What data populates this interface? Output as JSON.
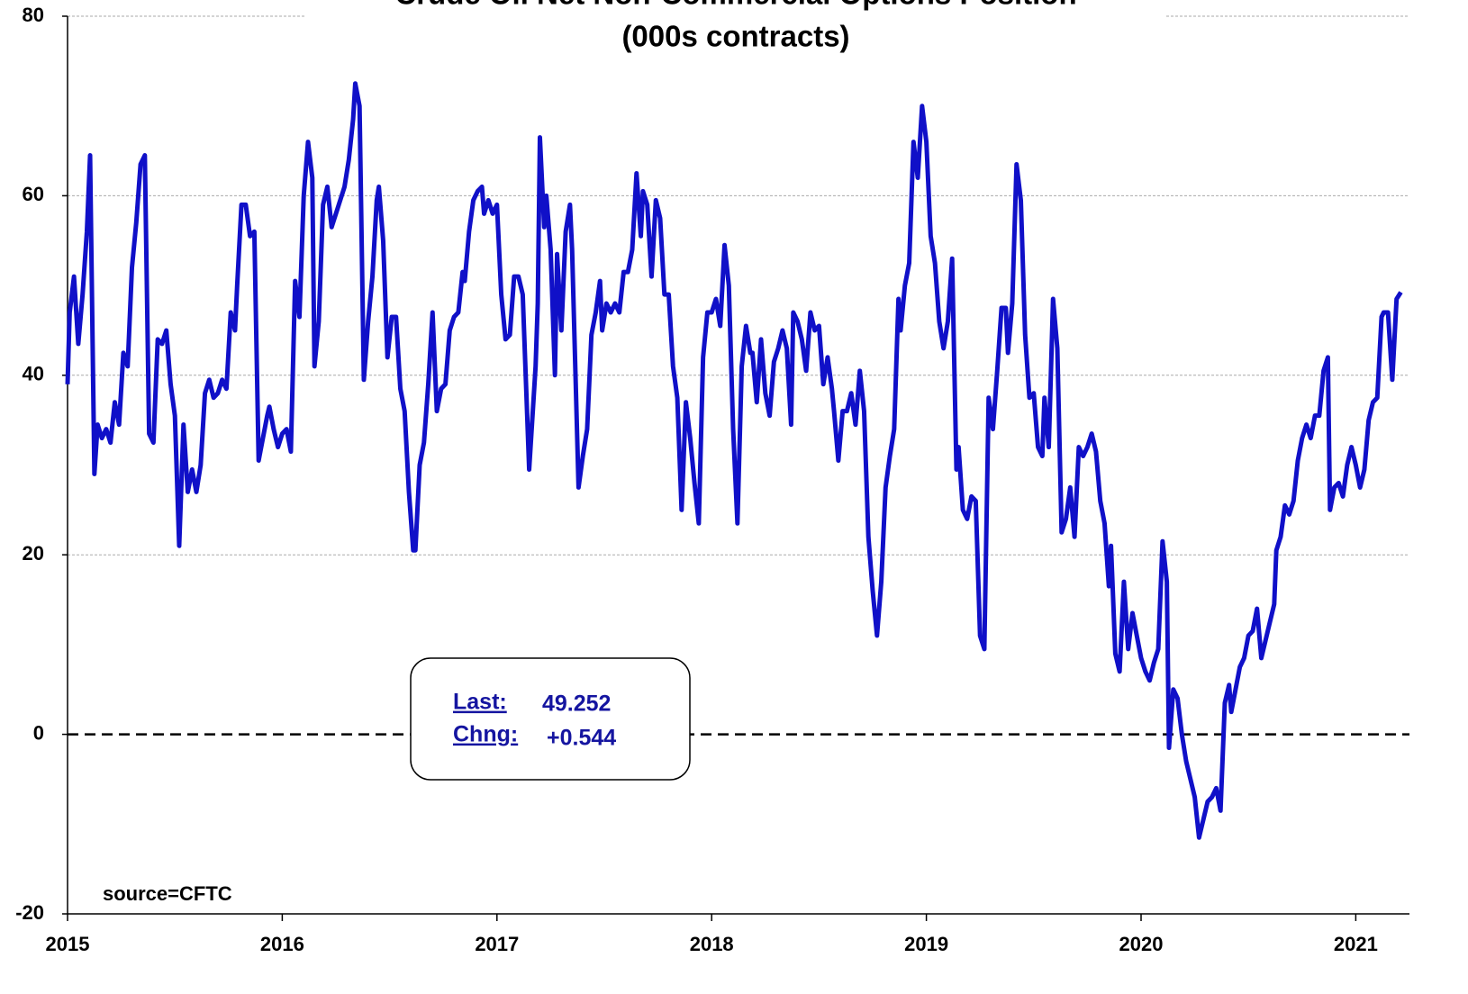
{
  "chart_data": {
    "type": "line",
    "title": "Crude Oil Net Non-Commercial Options Position",
    "subtitle": "(000s contracts)",
    "color": "#1010c8",
    "grid": true,
    "xlim": [
      2015,
      2021.25
    ],
    "xticks": [
      2015,
      2016,
      2017,
      2018,
      2019,
      2020,
      2021
    ],
    "ylim": [
      -20,
      80
    ],
    "yticks": [
      -20,
      0,
      20,
      40,
      60,
      80
    ],
    "annotations": {
      "last_label": "Last:",
      "last_value": "49.252",
      "change_label": "Chng:",
      "change_value": "+0.544",
      "source": "source=CFTC"
    },
    "x": [
      2015.0,
      2015.01,
      2015.03,
      2015.05,
      2015.07,
      2015.09,
      2015.105,
      2015.125,
      2015.14,
      2015.16,
      2015.18,
      2015.2,
      2015.22,
      2015.24,
      2015.26,
      2015.28,
      2015.3,
      2015.32,
      2015.34,
      2015.36,
      2015.38,
      2015.4,
      2015.42,
      2015.44,
      2015.46,
      2015.48,
      2015.5,
      2015.52,
      2015.54,
      2015.56,
      2015.58,
      2015.6,
      2015.62,
      2015.64,
      2015.66,
      2015.68,
      2015.7,
      2015.72,
      2015.74,
      2015.76,
      2015.78,
      2015.79,
      2015.81,
      2015.83,
      2015.85,
      2015.87,
      2015.89,
      2015.91,
      2015.93,
      2015.94,
      2015.96,
      2015.98,
      2016.0,
      2016.02,
      2016.04,
      2016.06,
      2016.08,
      2016.1,
      2016.12,
      2016.14,
      2016.15,
      2016.17,
      2016.19,
      2016.21,
      2016.23,
      2016.25,
      2016.27,
      2016.29,
      2016.31,
      2016.33,
      2016.34,
      2016.36,
      2016.38,
      2016.4,
      2016.42,
      2016.44,
      2016.45,
      2016.47,
      2016.49,
      2016.51,
      2016.53,
      2016.55,
      2016.57,
      2016.59,
      2016.61,
      2016.62,
      2016.64,
      2016.66,
      2016.68,
      2016.7,
      2016.72,
      2016.74,
      2016.76,
      2016.78,
      2016.8,
      2016.82,
      2016.84,
      2016.85,
      2016.87,
      2016.89,
      2016.91,
      2016.93,
      2016.94,
      2016.96,
      2016.98,
      2017.0,
      2017.02,
      2017.04,
      2017.06,
      2017.08,
      2017.1,
      2017.12,
      2017.15,
      2017.18,
      2017.19,
      2017.2,
      2017.22,
      2017.23,
      2017.25,
      2017.27,
      2017.28,
      2017.3,
      2017.32,
      2017.34,
      2017.35,
      2017.38,
      2017.4,
      2017.42,
      2017.44,
      2017.46,
      2017.48,
      2017.49,
      2017.51,
      2017.53,
      2017.55,
      2017.57,
      2017.59,
      2017.61,
      2017.63,
      2017.65,
      2017.67,
      2017.68,
      2017.7,
      2017.72,
      2017.74,
      2017.76,
      2017.78,
      2017.8,
      2017.82,
      2017.84,
      2017.86,
      2017.88,
      2017.9,
      2017.92,
      2017.94,
      2017.96,
      2017.98,
      2018.0,
      2018.02,
      2018.04,
      2018.06,
      2018.08,
      2018.1,
      2018.12,
      2018.14,
      2018.16,
      2018.18,
      2018.19,
      2018.21,
      2018.23,
      2018.25,
      2018.27,
      2018.29,
      2018.31,
      2018.33,
      2018.35,
      2018.37,
      2018.38,
      2018.4,
      2018.42,
      2018.44,
      2018.46,
      2018.48,
      2018.5,
      2018.52,
      2018.54,
      2018.56,
      2018.57,
      2018.59,
      2018.61,
      2018.63,
      2018.65,
      2018.67,
      2018.69,
      2018.71,
      2018.73,
      2018.75,
      2018.77,
      2018.79,
      2018.81,
      2018.83,
      2018.85,
      2018.87,
      2018.88,
      2018.9,
      2018.92,
      2018.94,
      2018.96,
      2018.98,
      2019.0,
      2019.02,
      2019.04,
      2019.06,
      2019.08,
      2019.1,
      2019.12,
      2019.14,
      2019.15,
      2019.17,
      2019.19,
      2019.21,
      2019.23,
      2019.25,
      2019.27,
      2019.29,
      2019.31,
      2019.33,
      2019.35,
      2019.37,
      2019.38,
      2019.4,
      2019.42,
      2019.44,
      2019.46,
      2019.48,
      2019.5,
      2019.52,
      2019.54,
      2019.55,
      2019.57,
      2019.59,
      2019.61,
      2019.63,
      2019.65,
      2019.67,
      2019.69,
      2019.71,
      2019.73,
      2019.75,
      2019.77,
      2019.79,
      2019.81,
      2019.83,
      2019.85,
      2019.86,
      2019.88,
      2019.9,
      2019.92,
      2019.94,
      2019.96,
      2019.98,
      2020.0,
      2020.02,
      2020.04,
      2020.06,
      2020.08,
      2020.1,
      2020.12,
      2020.13,
      2020.15,
      2020.17,
      2020.19,
      2020.21,
      2020.23,
      2020.25,
      2020.27,
      2020.29,
      2020.31,
      2020.33,
      2020.35,
      2020.37,
      2020.39,
      2020.41,
      2020.42,
      2020.44,
      2020.46,
      2020.48,
      2020.5,
      2020.52,
      2020.54,
      2020.56,
      2020.58,
      2020.6,
      2020.62,
      2020.63,
      2020.65,
      2020.67,
      2020.69,
      2020.71,
      2020.73,
      2020.75,
      2020.77,
      2020.79,
      2020.81,
      2020.83,
      2020.85,
      2020.87,
      2020.88,
      2020.9,
      2020.92,
      2020.94,
      2020.96,
      2020.98,
      2021.0,
      2021.02,
      2021.04,
      2021.06,
      2021.08,
      2021.1,
      2021.12,
      2021.13,
      2021.15,
      2021.17,
      2021.19,
      2021.21
    ],
    "values": [
      39,
      47,
      51,
      43.5,
      49,
      56,
      64.5,
      29,
      34.5,
      33,
      34,
      32.5,
      37,
      34.5,
      42.5,
      41,
      52,
      57,
      63.5,
      64.5,
      33.5,
      32.5,
      44,
      43.5,
      45,
      39,
      35.5,
      21,
      34.5,
      27,
      29.5,
      27,
      30,
      38,
      39.5,
      37.5,
      38,
      39.5,
      38.5,
      47,
      45,
      50,
      59,
      59,
      55.5,
      56,
      30.5,
      33,
      35.5,
      36.5,
      34,
      32,
      33.5,
      34,
      31.5,
      50.5,
      46.5,
      60,
      66,
      62,
      41,
      46,
      59,
      61,
      56.5,
      58,
      59.5,
      61,
      64,
      68.5,
      72.5,
      70,
      39.5,
      46,
      51,
      59.5,
      61,
      55,
      42,
      46.5,
      46.5,
      38.5,
      36,
      27,
      20.5,
      20.5,
      30,
      32.5,
      39,
      47,
      36,
      38.5,
      39,
      45,
      46.5,
      47,
      51.5,
      50.5,
      56,
      59.5,
      60.5,
      61,
      58,
      59.5,
      58,
      59,
      49,
      44,
      44.5,
      51,
      51,
      49,
      29.5,
      41,
      48,
      66.5,
      56.5,
      60,
      54,
      40,
      53.5,
      45,
      56,
      59,
      54,
      27.5,
      31,
      34,
      44.5,
      47,
      50.5,
      45,
      48,
      47,
      48,
      47,
      51.5,
      51.5,
      54,
      62.5,
      55.5,
      60.5,
      59,
      51,
      59.5,
      57.5,
      49,
      49,
      41,
      37.5,
      25,
      37,
      33,
      28,
      23.5,
      42,
      47,
      47,
      48.5,
      45.5,
      54.5,
      50,
      34,
      23.5,
      41,
      45.5,
      42.5,
      42.5,
      37,
      44,
      38,
      35.5,
      41.5,
      43,
      45,
      43,
      34.5,
      47,
      46,
      44,
      40.5,
      47,
      45,
      45.5,
      39,
      42,
      38.5,
      36,
      30.5,
      36,
      36,
      38,
      34.5,
      40.5,
      36,
      22,
      16,
      11,
      17,
      27.5,
      31,
      34,
      48.5,
      45,
      50,
      52.5,
      66,
      62,
      70,
      66,
      55.5,
      52.5,
      46,
      43,
      46,
      53,
      29.5,
      32,
      25,
      24,
      26.5,
      26,
      11,
      9.5,
      37.5,
      34,
      40.5,
      47.5,
      47.5,
      42.5,
      48,
      63.5,
      59.5,
      44.5,
      37.5,
      38,
      32,
      31,
      37.5,
      32,
      48.5,
      43,
      22.5,
      24,
      27.5,
      22,
      32,
      31,
      32,
      33.5,
      31.5,
      26,
      23.5,
      16.5,
      21,
      9,
      7,
      17,
      9.5,
      13.5,
      11,
      8.5,
      7,
      6,
      8,
      9.5,
      21.5,
      17,
      -1.5,
      5,
      4,
      0,
      -3,
      -5,
      -7,
      -11.5,
      -9.5,
      -7.5,
      -7,
      -6,
      -8.5,
      3.5,
      5.5,
      2.5,
      5,
      7.5,
      8.5,
      11,
      11.5,
      14,
      8.5,
      10.5,
      12.5,
      14.5,
      20.5,
      22,
      25.5,
      24.5,
      26,
      30.5,
      33,
      34.5,
      33,
      35.5,
      35.5,
      40.5,
      42,
      25,
      27.5,
      28,
      26.5,
      30,
      32,
      30,
      27.5,
      29.5,
      35,
      37,
      37.5,
      46.5,
      47,
      47,
      39.5,
      48.5,
      49.252
    ]
  }
}
